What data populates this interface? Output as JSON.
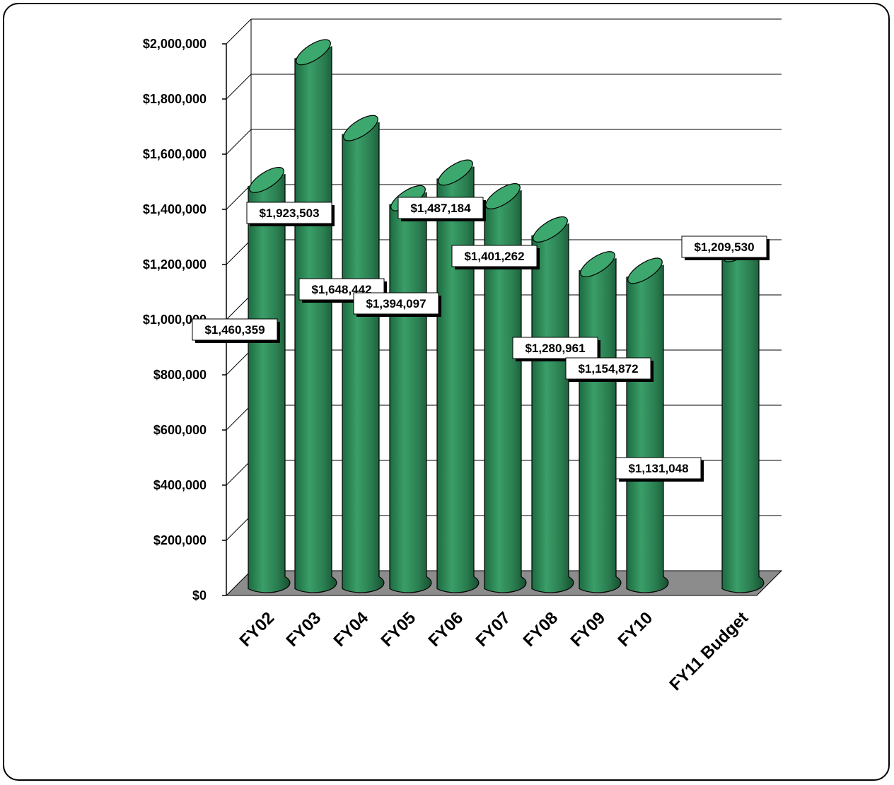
{
  "chart_data": {
    "type": "bar",
    "title": "",
    "xlabel": "",
    "ylabel": "",
    "categories": [
      "FY02",
      "FY03",
      "FY04",
      "FY05",
      "FY06",
      "FY07",
      "FY08",
      "FY09",
      "FY10",
      "FY11 Budget"
    ],
    "values": [
      1460359,
      1923503,
      1648442,
      1394097,
      1487184,
      1401262,
      1280961,
      1154872,
      1131048,
      1209530
    ],
    "data_labels": [
      "$1,460,359",
      "$1,923,503",
      "$1,648,442",
      "$1,394,097",
      "$1,487,184",
      "$1,401,262",
      "$1,280,961",
      "$1,154,872",
      "$1,131,048",
      "$1,209,530"
    ],
    "ylim": [
      0,
      2000000
    ],
    "y_ticks": [
      0,
      200000,
      400000,
      600000,
      800000,
      1000000,
      1200000,
      1400000,
      1600000,
      1800000,
      2000000
    ],
    "y_tick_labels": [
      "$0",
      "$200,000",
      "$400,000",
      "$600,000",
      "$800,000",
      "$1,000,000",
      "$1,200,000",
      "$1,400,000",
      "$1,600,000",
      "$1,800,000",
      "$2,000,000"
    ],
    "style": "3d-cylinder",
    "grid": true,
    "legend": "none",
    "colors": {
      "bar": "#2e8b57",
      "bar_dark": "#1a5c38",
      "floor": "#8c8c8c"
    }
  }
}
